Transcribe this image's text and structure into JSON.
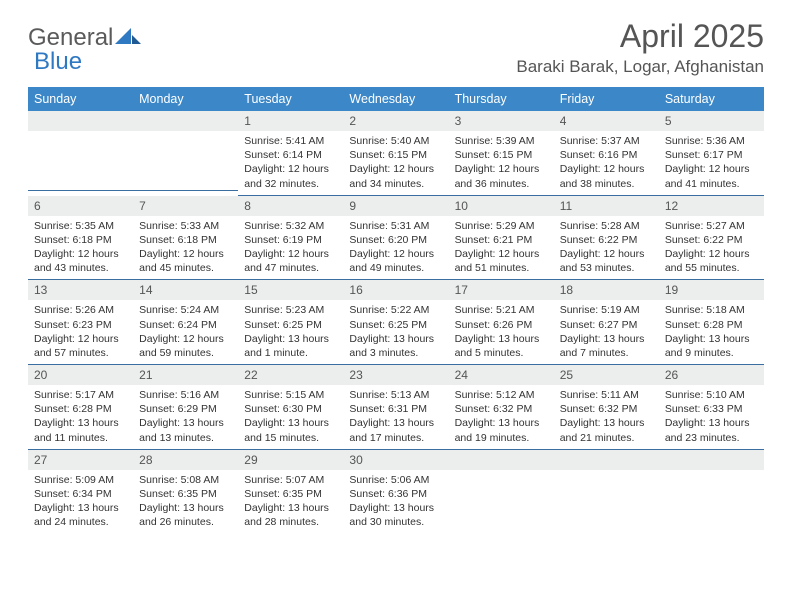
{
  "logo": {
    "text1": "General",
    "text2": "Blue"
  },
  "title": "April 2025",
  "location": "Baraki Barak, Logar, Afghanistan",
  "colors": {
    "header_bg": "#3b87c8",
    "header_fg": "#ffffff",
    "daynum_bg": "#eceded",
    "rule": "#3b6ea0",
    "logo_gray": "#5a5a5a",
    "logo_blue": "#2f78c2"
  },
  "day_headers": [
    "Sunday",
    "Monday",
    "Tuesday",
    "Wednesday",
    "Thursday",
    "Friday",
    "Saturday"
  ],
  "weeks": [
    [
      null,
      null,
      {
        "n": "1",
        "sr": "5:41 AM",
        "ss": "6:14 PM",
        "dl": "12 hours and 32 minutes."
      },
      {
        "n": "2",
        "sr": "5:40 AM",
        "ss": "6:15 PM",
        "dl": "12 hours and 34 minutes."
      },
      {
        "n": "3",
        "sr": "5:39 AM",
        "ss": "6:15 PM",
        "dl": "12 hours and 36 minutes."
      },
      {
        "n": "4",
        "sr": "5:37 AM",
        "ss": "6:16 PM",
        "dl": "12 hours and 38 minutes."
      },
      {
        "n": "5",
        "sr": "5:36 AM",
        "ss": "6:17 PM",
        "dl": "12 hours and 41 minutes."
      }
    ],
    [
      {
        "n": "6",
        "sr": "5:35 AM",
        "ss": "6:18 PM",
        "dl": "12 hours and 43 minutes."
      },
      {
        "n": "7",
        "sr": "5:33 AM",
        "ss": "6:18 PM",
        "dl": "12 hours and 45 minutes."
      },
      {
        "n": "8",
        "sr": "5:32 AM",
        "ss": "6:19 PM",
        "dl": "12 hours and 47 minutes."
      },
      {
        "n": "9",
        "sr": "5:31 AM",
        "ss": "6:20 PM",
        "dl": "12 hours and 49 minutes."
      },
      {
        "n": "10",
        "sr": "5:29 AM",
        "ss": "6:21 PM",
        "dl": "12 hours and 51 minutes."
      },
      {
        "n": "11",
        "sr": "5:28 AM",
        "ss": "6:22 PM",
        "dl": "12 hours and 53 minutes."
      },
      {
        "n": "12",
        "sr": "5:27 AM",
        "ss": "6:22 PM",
        "dl": "12 hours and 55 minutes."
      }
    ],
    [
      {
        "n": "13",
        "sr": "5:26 AM",
        "ss": "6:23 PM",
        "dl": "12 hours and 57 minutes."
      },
      {
        "n": "14",
        "sr": "5:24 AM",
        "ss": "6:24 PM",
        "dl": "12 hours and 59 minutes."
      },
      {
        "n": "15",
        "sr": "5:23 AM",
        "ss": "6:25 PM",
        "dl": "13 hours and 1 minute."
      },
      {
        "n": "16",
        "sr": "5:22 AM",
        "ss": "6:25 PM",
        "dl": "13 hours and 3 minutes."
      },
      {
        "n": "17",
        "sr": "5:21 AM",
        "ss": "6:26 PM",
        "dl": "13 hours and 5 minutes."
      },
      {
        "n": "18",
        "sr": "5:19 AM",
        "ss": "6:27 PM",
        "dl": "13 hours and 7 minutes."
      },
      {
        "n": "19",
        "sr": "5:18 AM",
        "ss": "6:28 PM",
        "dl": "13 hours and 9 minutes."
      }
    ],
    [
      {
        "n": "20",
        "sr": "5:17 AM",
        "ss": "6:28 PM",
        "dl": "13 hours and 11 minutes."
      },
      {
        "n": "21",
        "sr": "5:16 AM",
        "ss": "6:29 PM",
        "dl": "13 hours and 13 minutes."
      },
      {
        "n": "22",
        "sr": "5:15 AM",
        "ss": "6:30 PM",
        "dl": "13 hours and 15 minutes."
      },
      {
        "n": "23",
        "sr": "5:13 AM",
        "ss": "6:31 PM",
        "dl": "13 hours and 17 minutes."
      },
      {
        "n": "24",
        "sr": "5:12 AM",
        "ss": "6:32 PM",
        "dl": "13 hours and 19 minutes."
      },
      {
        "n": "25",
        "sr": "5:11 AM",
        "ss": "6:32 PM",
        "dl": "13 hours and 21 minutes."
      },
      {
        "n": "26",
        "sr": "5:10 AM",
        "ss": "6:33 PM",
        "dl": "13 hours and 23 minutes."
      }
    ],
    [
      {
        "n": "27",
        "sr": "5:09 AM",
        "ss": "6:34 PM",
        "dl": "13 hours and 24 minutes."
      },
      {
        "n": "28",
        "sr": "5:08 AM",
        "ss": "6:35 PM",
        "dl": "13 hours and 26 minutes."
      },
      {
        "n": "29",
        "sr": "5:07 AM",
        "ss": "6:35 PM",
        "dl": "13 hours and 28 minutes."
      },
      {
        "n": "30",
        "sr": "5:06 AM",
        "ss": "6:36 PM",
        "dl": "13 hours and 30 minutes."
      },
      null,
      null,
      null
    ]
  ],
  "labels": {
    "sunrise": "Sunrise: ",
    "sunset": "Sunset: ",
    "daylight": "Daylight: "
  }
}
